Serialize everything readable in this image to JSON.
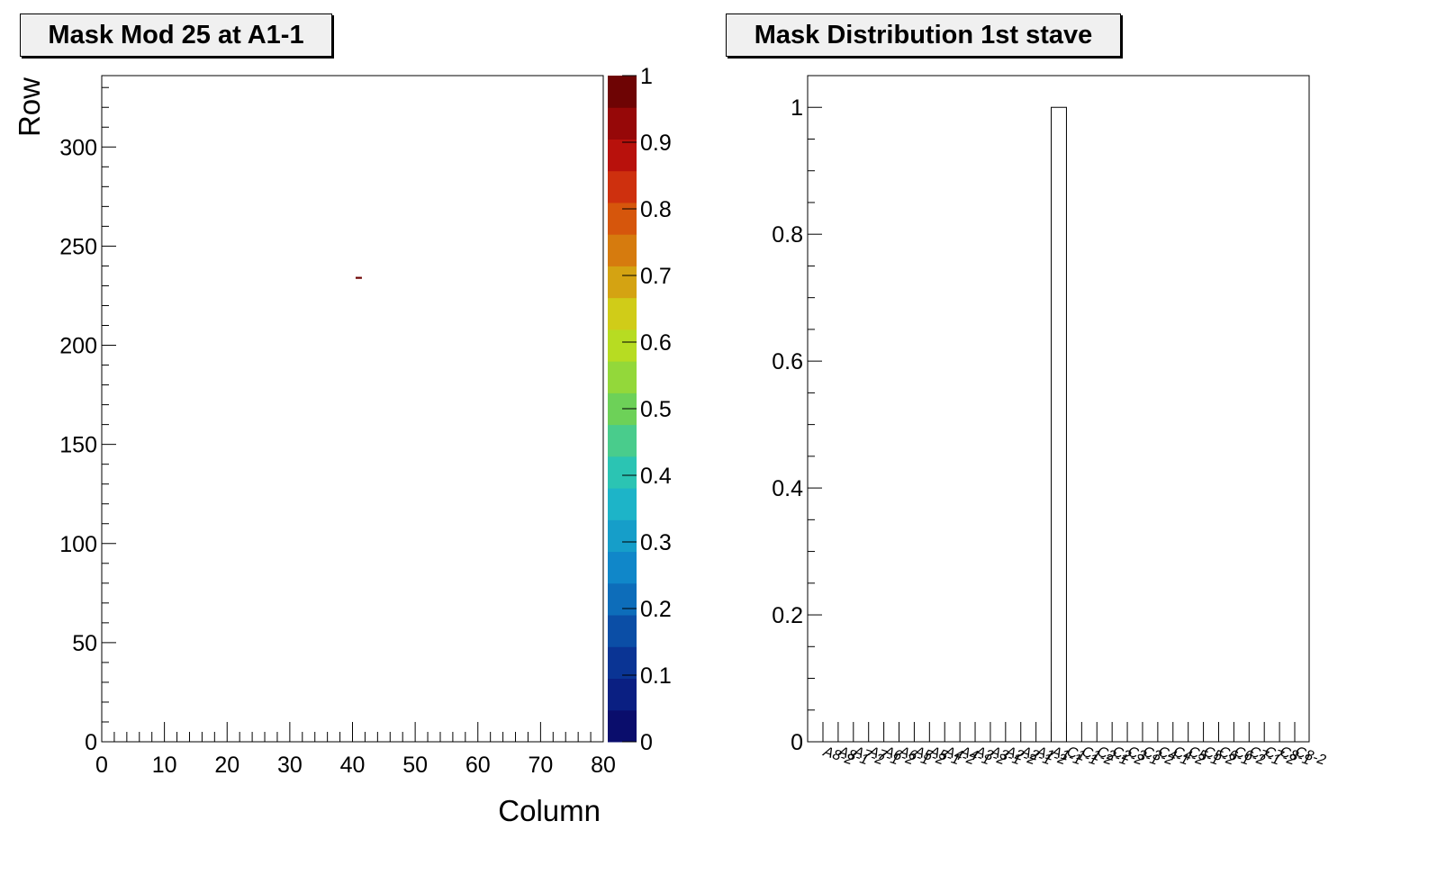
{
  "panels": {
    "left_title": "Mask Mod 25 at A1-1",
    "right_title": "Mask Distribution 1st stave"
  },
  "chart_data": [
    {
      "type": "heatmap",
      "title": "Mask Mod 25 at A1-1",
      "xlabel": "Column",
      "ylabel": "Row",
      "xlim": [
        0,
        80
      ],
      "ylim": [
        0,
        336
      ],
      "x_ticks": [
        "0",
        "10",
        "20",
        "30",
        "40",
        "50",
        "60",
        "70",
        "80"
      ],
      "y_ticks": [
        "0",
        "50",
        "100",
        "150",
        "200",
        "250",
        "300"
      ],
      "points": [
        {
          "x": 41,
          "y": 234,
          "value": 1
        }
      ],
      "colorbar": {
        "range": [
          0,
          1
        ],
        "ticks": [
          "0",
          "0.1",
          "0.2",
          "0.3",
          "0.4",
          "0.5",
          "0.6",
          "0.7",
          "0.8",
          "0.9",
          "1"
        ],
        "colors": [
          "#0a0d6c",
          "#0a1f82",
          "#0a3494",
          "#0b4ea6",
          "#0d6dba",
          "#1087c9",
          "#169ec9",
          "#1db4c8",
          "#2bc4b3",
          "#49cc8c",
          "#6dd158",
          "#93d83a",
          "#b7dc22",
          "#d0cc18",
          "#d4a312",
          "#d67b0e",
          "#d6560c",
          "#ce300e",
          "#b8110c",
          "#960808",
          "#6e0404"
        ]
      },
      "grid": false,
      "legend": "none"
    },
    {
      "type": "bar",
      "title": "Mask Distribution 1st stave",
      "xlabel": "",
      "ylabel": "",
      "ylim": [
        0,
        1.05
      ],
      "y_ticks": [
        "0",
        "0.2",
        "0.4",
        "0.6",
        "0.8",
        "1"
      ],
      "categories": [
        "A8-2",
        "A8-1",
        "A7-2",
        "A7-1",
        "A6-2",
        "A6-1",
        "A5-2",
        "A5-1",
        "A4-2",
        "A4-1",
        "A3-2",
        "A3-1",
        "A2-2",
        "A2-1",
        "A1-2",
        "A1-1",
        "C1-1",
        "C1-2",
        "C2-1",
        "C2-2",
        "C3-1",
        "C3-2",
        "C4-1",
        "C4-2",
        "C5-1",
        "C5-2",
        "C6-1",
        "C6-2",
        "C7-1",
        "C7-2",
        "C8-1",
        "C8-2"
      ],
      "values": [
        0,
        0,
        0,
        0,
        0,
        0,
        0,
        0,
        0,
        0,
        0,
        0,
        0,
        0,
        0,
        1,
        0,
        0,
        0,
        0,
        0,
        0,
        0,
        0,
        0,
        0,
        0,
        0,
        0,
        0,
        0,
        0
      ],
      "bar_fill": "#ffffff",
      "bar_stroke": "#000000",
      "grid": false,
      "legend": "none"
    }
  ]
}
